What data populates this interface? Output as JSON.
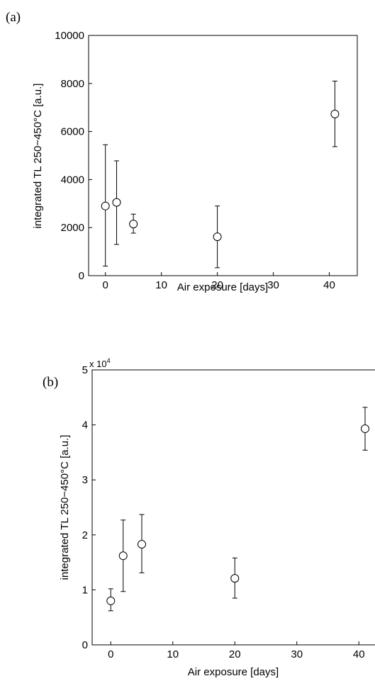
{
  "chart_data": [
    {
      "panel_label": "(a)",
      "type": "scatter",
      "xlabel": "Air exposure [days]",
      "ylabel": "integrated TL 250−450°C [a.u.]",
      "xlim": [
        -3,
        45
      ],
      "ylim": [
        0,
        10000
      ],
      "xticks": [
        0,
        10,
        20,
        30,
        40
      ],
      "yticks": [
        0,
        2000,
        4000,
        6000,
        8000,
        10000
      ],
      "xtick_labels": [
        "0",
        "10",
        "20",
        "30",
        "40"
      ],
      "ytick_labels": [
        "0",
        "2000",
        "4000",
        "6000",
        "8000",
        "10000"
      ],
      "multiplier_label": "",
      "multiplier_exp": "",
      "grid": false,
      "marker": "open-circle",
      "points": [
        {
          "x": 0,
          "y": 2900,
          "low": 400,
          "high": 5450
        },
        {
          "x": 2,
          "y": 3050,
          "low": 1300,
          "high": 4780
        },
        {
          "x": 5,
          "y": 2150,
          "low": 1770,
          "high": 2560
        },
        {
          "x": 20,
          "y": 1620,
          "low": 330,
          "high": 2900
        },
        {
          "x": 41,
          "y": 6730,
          "low": 5370,
          "high": 8100
        }
      ]
    },
    {
      "panel_label": "(b)",
      "type": "scatter",
      "xlabel": "Air exposure [days]",
      "ylabel": "integrated TL 250−450°C [a.u.]",
      "xlim": [
        -3,
        45
      ],
      "ylim": [
        0,
        5
      ],
      "xticks": [
        0,
        10,
        20,
        30,
        40
      ],
      "yticks": [
        0,
        1,
        2,
        3,
        4,
        5
      ],
      "xtick_labels": [
        "0",
        "10",
        "20",
        "30",
        "40"
      ],
      "ytick_labels": [
        "0",
        "1",
        "2",
        "3",
        "4",
        "5"
      ],
      "multiplier_label": "x 10",
      "multiplier_exp": "4",
      "grid": false,
      "marker": "open-circle",
      "points": [
        {
          "x": 0,
          "y": 0.8,
          "low": 0.62,
          "high": 1.02
        },
        {
          "x": 2,
          "y": 1.62,
          "low": 0.97,
          "high": 2.27
        },
        {
          "x": 5,
          "y": 1.83,
          "low": 1.31,
          "high": 2.37
        },
        {
          "x": 20,
          "y": 1.21,
          "low": 0.85,
          "high": 1.58
        },
        {
          "x": 41,
          "y": 3.93,
          "low": 3.54,
          "high": 4.32
        }
      ]
    }
  ]
}
